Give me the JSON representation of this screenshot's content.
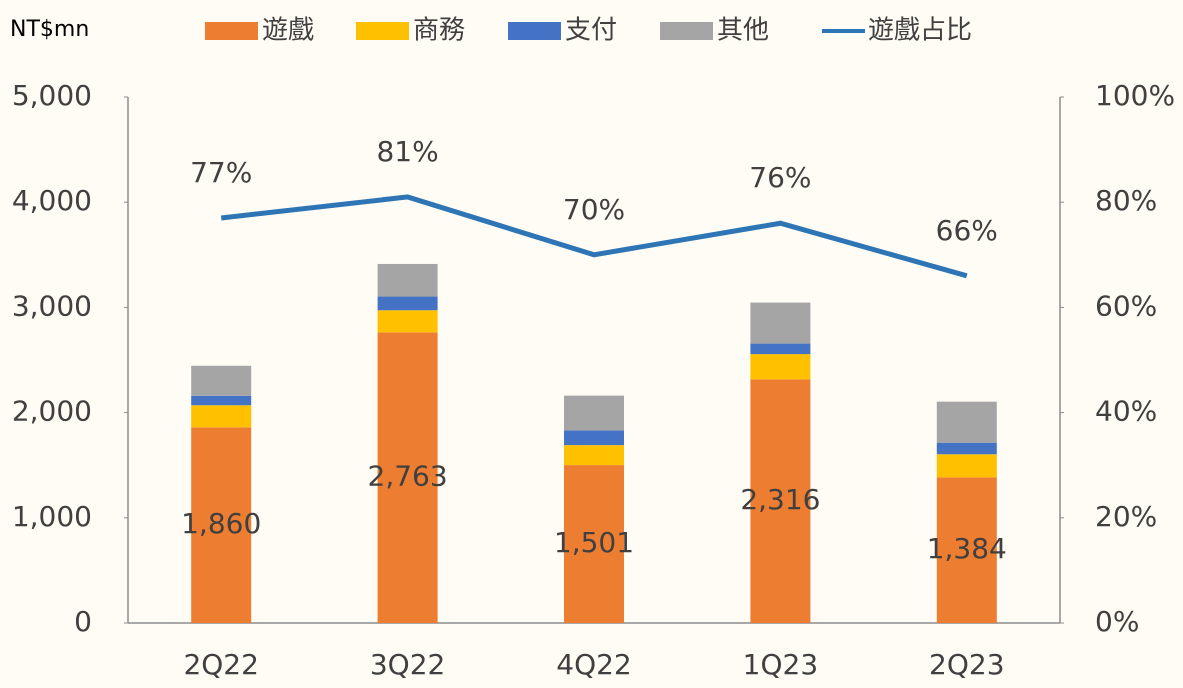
{
  "chart_data": {
    "type": "bar",
    "stacked": true,
    "unit_label": "NT$mn",
    "categories": [
      "2Q22",
      "3Q22",
      "4Q22",
      "1Q23",
      "2Q23"
    ],
    "series": [
      {
        "name": "遊戲",
        "color": "#ed7d31",
        "values": [
          1860,
          2763,
          1501,
          2316,
          1384
        ],
        "value_labels": [
          "1,860",
          "2,763",
          "1,501",
          "2,316",
          "1,384"
        ]
      },
      {
        "name": "商務",
        "color": "#ffc000",
        "values": [
          210,
          210,
          190,
          240,
          220
        ]
      },
      {
        "name": "支付",
        "color": "#4472c4",
        "values": [
          90,
          130,
          140,
          100,
          110
        ]
      },
      {
        "name": "其他",
        "color": "#a5a5a5",
        "values": [
          285,
          310,
          330,
          390,
          390
        ]
      },
      {
        "name": "遊戲占比",
        "type": "line",
        "axis": "y2",
        "color": "#2e75b6",
        "values": [
          77,
          81,
          70,
          76,
          66
        ],
        "value_labels": [
          "77%",
          "81%",
          "70%",
          "76%",
          "66%"
        ]
      }
    ],
    "ylim": [
      0,
      5000
    ],
    "yticks": [
      0,
      {
        "value": 1000,
        "label": "1,000"
      },
      {
        "value": 2000,
        "label": "2,000"
      },
      {
        "value": 3000,
        "label": "3,000"
      },
      {
        "value": 4000,
        "label": "4,000"
      },
      {
        "value": 5000,
        "label": "5,000"
      }
    ],
    "y2lim": [
      0,
      100
    ],
    "y2ticks": [
      {
        "value": 0,
        "label": "0%"
      },
      {
        "value": 20,
        "label": "20%"
      },
      {
        "value": 40,
        "label": "40%"
      },
      {
        "value": 60,
        "label": "60%"
      },
      {
        "value": 80,
        "label": "80%"
      },
      {
        "value": 100,
        "label": "100%"
      }
    ]
  }
}
